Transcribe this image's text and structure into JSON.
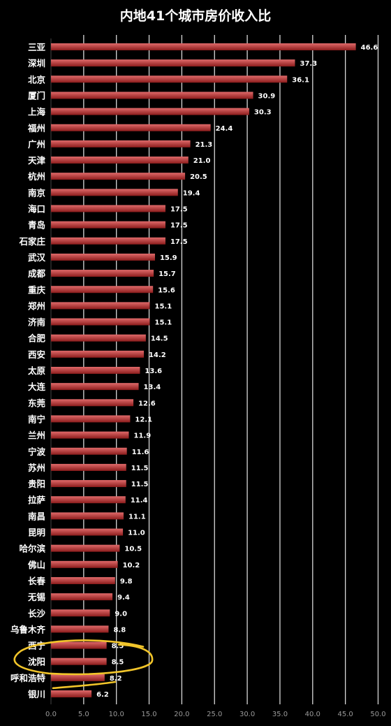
{
  "chart_data": {
    "type": "bar",
    "orientation": "horizontal",
    "title": "内地41个城市房价收入比",
    "categories": [
      "三亚",
      "深圳",
      "北京",
      "厦门",
      "上海",
      "福州",
      "广州",
      "天津",
      "杭州",
      "南京",
      "海口",
      "青岛",
      "石家庄",
      "武汉",
      "成都",
      "重庆",
      "郑州",
      "济南",
      "合肥",
      "西安",
      "太原",
      "大连",
      "东莞",
      "南宁",
      "兰州",
      "宁波",
      "苏州",
      "贵阳",
      "拉萨",
      "南昌",
      "昆明",
      "哈尔滨",
      "佛山",
      "长春",
      "无锡",
      "长沙",
      "乌鲁木齐",
      "西宁",
      "沈阳",
      "呼和浩特",
      "银川"
    ],
    "values": [
      46.6,
      37.3,
      36.1,
      30.9,
      30.3,
      24.4,
      21.3,
      21.0,
      20.5,
      19.4,
      17.5,
      17.5,
      17.5,
      15.9,
      15.7,
      15.6,
      15.1,
      15.1,
      14.5,
      14.2,
      13.6,
      13.4,
      12.6,
      12.1,
      11.9,
      11.6,
      11.5,
      11.5,
      11.4,
      11.1,
      11.0,
      10.5,
      10.2,
      9.8,
      9.4,
      9.0,
      8.8,
      8.5,
      8.5,
      8.2,
      6.2
    ],
    "value_labels": [
      "46.6",
      "37.3",
      "36.1",
      "30.9",
      "30.3",
      "24.4",
      "21.3",
      "21.0",
      "20.5",
      "19.4",
      "17.5",
      "17.5",
      "17.5",
      "15.9",
      "15.7",
      "15.6",
      "15.1",
      "15.1",
      "14.5",
      "14.2",
      "13.6",
      "13.4",
      "12.6",
      "12.1",
      "11.9",
      "11.6",
      "11.5",
      "11.5",
      "11.4",
      "11.1",
      "11.0",
      "10.5",
      "10.2",
      "9.8",
      "9.4",
      "9.0",
      "8.8",
      "8.5",
      "8.5",
      "8.2",
      "6.2"
    ],
    "xlim": [
      0,
      50
    ],
    "x_ticks": [
      "0.0",
      "5.0",
      "10.0",
      "15.0",
      "20.0",
      "25.0",
      "30.0",
      "35.0",
      "40.0",
      "45.0",
      "50.0"
    ],
    "grid": "vertical",
    "highlighted_categories": [
      "西宁",
      "沈阳",
      "呼和浩特"
    ],
    "colors": {
      "background": "#000000",
      "bar_top": "#e06a6a",
      "bar_bottom": "#8c1c1c",
      "grid": "#d8d8d8",
      "text": "#ffffff",
      "tick_text": "#9a9a9a",
      "highlight_ink": "#f2c52a"
    }
  }
}
